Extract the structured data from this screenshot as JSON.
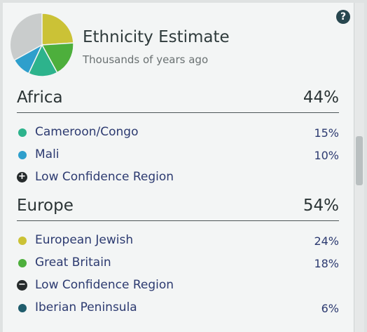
{
  "header": {
    "title": "Ethnicity Estimate",
    "subtitle": "Thousands of years ago",
    "help": "?"
  },
  "regions": [
    {
      "name": "Africa",
      "percent": "44%",
      "items": [
        {
          "label": "Cameroon/Congo",
          "percent": "15%",
          "color": "#2db38c"
        },
        {
          "label": "Mali",
          "percent": "10%",
          "color": "#2e9fcc"
        },
        {
          "label": "Low Confidence Region",
          "icon": "plus"
        }
      ]
    },
    {
      "name": "Europe",
      "percent": "54%",
      "items": [
        {
          "label": "European Jewish",
          "percent": "24%",
          "color": "#cbc236"
        },
        {
          "label": "Great Britain",
          "percent": "18%",
          "color": "#4daf3c"
        },
        {
          "label": "Low Confidence Region",
          "icon": "minus"
        },
        {
          "label": "Iberian Peninsula",
          "percent": "6%",
          "color": "#1f5c6c"
        }
      ]
    }
  ],
  "pie_order": [
    "1.0",
    "1.1",
    "0.0",
    "0.1"
  ]
}
